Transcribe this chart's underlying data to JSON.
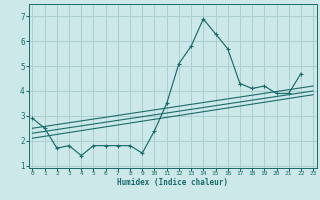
{
  "title": "",
  "xlabel": "Humidex (Indice chaleur)",
  "ylabel": "",
  "background_color": "#cce8e8",
  "grid_color": "#aacece",
  "line_color": "#1a6b6b",
  "x_humidex": [
    0,
    1,
    2,
    3,
    4,
    5,
    6,
    7,
    8,
    9,
    10,
    11,
    12,
    13,
    14,
    15,
    16,
    17,
    18,
    19,
    20,
    21,
    22,
    23
  ],
  "y_main": [
    2.9,
    2.5,
    1.7,
    1.8,
    1.4,
    1.8,
    1.8,
    1.8,
    1.8,
    1.5,
    2.4,
    3.5,
    5.1,
    5.8,
    6.9,
    6.3,
    5.7,
    4.3,
    4.1,
    4.2,
    3.9,
    3.9,
    4.7,
    null
  ],
  "y_line1_x": [
    0,
    23
  ],
  "y_line1_y": [
    2.1,
    3.85
  ],
  "y_line2_x": [
    0,
    23
  ],
  "y_line2_y": [
    2.3,
    4.0
  ],
  "y_line3_x": [
    0,
    23
  ],
  "y_line3_y": [
    2.5,
    4.2
  ],
  "xlim": [
    -0.3,
    23.3
  ],
  "ylim": [
    0.9,
    7.5
  ],
  "yticks": [
    1,
    2,
    3,
    4,
    5,
    6,
    7
  ],
  "xticks": [
    0,
    1,
    2,
    3,
    4,
    5,
    6,
    7,
    8,
    9,
    10,
    11,
    12,
    13,
    14,
    15,
    16,
    17,
    18,
    19,
    20,
    21,
    22,
    23
  ]
}
